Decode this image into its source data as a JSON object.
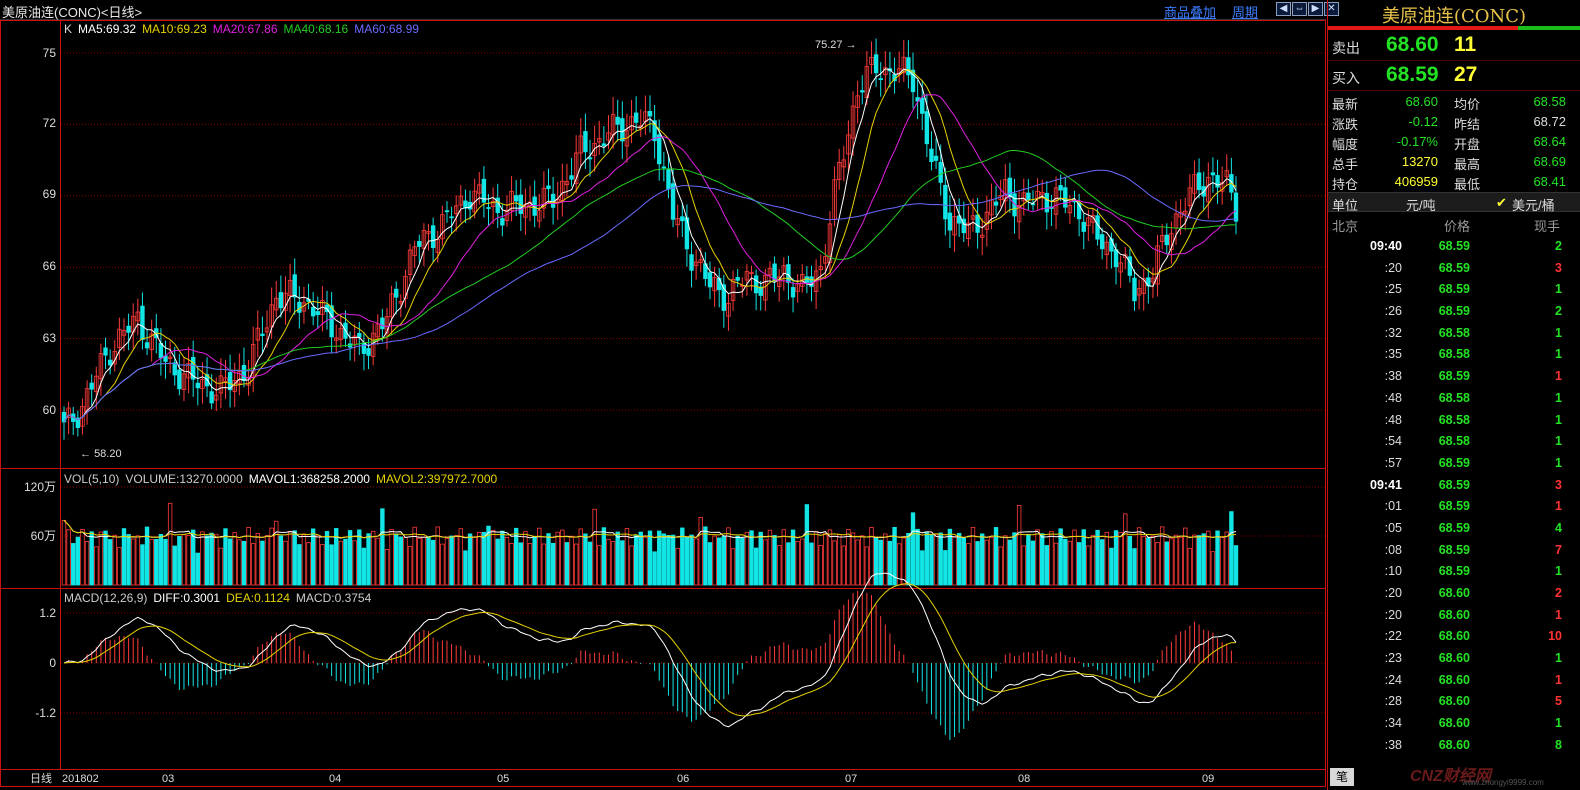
{
  "header": {
    "title": "美原油连(CONC)<日线>",
    "overlay_link": "商品叠加",
    "period_link": "周期",
    "nav_buttons": [
      "◀",
      "⇔",
      "▶",
      "✕"
    ]
  },
  "main_chart": {
    "ma_legend": [
      {
        "text": "K",
        "color": "#dddddd"
      },
      {
        "text": "MA5:69.32",
        "color": "#ffffff"
      },
      {
        "text": "MA10:69.23",
        "color": "#e6d200"
      },
      {
        "text": "MA20:67.86",
        "color": "#e020e0"
      },
      {
        "text": "MA40:68.16",
        "color": "#22cc22"
      },
      {
        "text": "MA60:68.99",
        "color": "#6a6aff"
      }
    ],
    "y_ticks": [
      "75",
      "72",
      "69",
      "66",
      "63",
      "60"
    ],
    "high_marker": "75.27",
    "low_marker": "58.20"
  },
  "volume_panel": {
    "legend": [
      {
        "text": "VOL(5,10)",
        "color": "#cccccc"
      },
      {
        "text": "VOLUME:13270.0000",
        "color": "#cccccc"
      },
      {
        "text": "MAVOL1:368258.2000",
        "color": "#ffffff"
      },
      {
        "text": "MAVOL2:397972.7000",
        "color": "#e6d200"
      }
    ],
    "y_ticks": [
      "120万",
      "60万"
    ]
  },
  "macd_panel": {
    "legend": [
      {
        "text": "MACD(12,26,9)",
        "color": "#cccccc"
      },
      {
        "text": "DIFF:0.3001",
        "color": "#ffffff"
      },
      {
        "text": "DEA:0.1124",
        "color": "#e6d200"
      },
      {
        "text": "MACD:0.3754",
        "color": "#cccccc"
      }
    ],
    "y_ticks": [
      "1.2",
      "0",
      "-1.2"
    ]
  },
  "x_axis": {
    "label": "日线",
    "ticks": [
      "201802",
      "03",
      "04",
      "05",
      "06",
      "07",
      "08",
      "09"
    ]
  },
  "quote": {
    "title": "美原油连(CONC)",
    "ask": {
      "label": "卖出",
      "price": "68.60",
      "qty": "11"
    },
    "bid": {
      "label": "买入",
      "price": "68.59",
      "qty": "27"
    },
    "stats": [
      {
        "k1": "最新",
        "v1": "68.60",
        "c1": "#23e223",
        "k2": "均价",
        "v2": "68.58",
        "c2": "#23e223"
      },
      {
        "k1": "涨跌",
        "v1": "-0.12",
        "c1": "#23e223",
        "k2": "昨结",
        "v2": "68.72",
        "c2": "#dddddd"
      },
      {
        "k1": "幅度",
        "v1": "-0.17%",
        "c1": "#23e223",
        "k2": "开盘",
        "v2": "68.64",
        "c2": "#23e223"
      },
      {
        "k1": "总手",
        "v1": "13270",
        "c1": "#ffff33",
        "k2": "最高",
        "v2": "68.69",
        "c2": "#23e223"
      },
      {
        "k1": "持仓",
        "v1": "406959",
        "c1": "#ffff33",
        "k2": "最低",
        "v2": "68.41",
        "c2": "#23e223"
      }
    ],
    "unit": {
      "label": "单位",
      "cny": "元/吨",
      "usd": "美元/桶"
    },
    "tick_header": {
      "time": "北京",
      "price": "价格",
      "qty": "现手"
    },
    "ticks": [
      {
        "t": "09:40",
        "p": "68.59",
        "q": "2",
        "qc": "#23e223",
        "bold": true
      },
      {
        "t": ":20",
        "p": "68.59",
        "q": "3",
        "qc": "#ff3333"
      },
      {
        "t": ":25",
        "p": "68.59",
        "q": "1",
        "qc": "#23e223"
      },
      {
        "t": ":26",
        "p": "68.59",
        "q": "2",
        "qc": "#23e223"
      },
      {
        "t": ":32",
        "p": "68.58",
        "q": "1",
        "qc": "#23e223"
      },
      {
        "t": ":35",
        "p": "68.58",
        "q": "1",
        "qc": "#23e223"
      },
      {
        "t": ":38",
        "p": "68.59",
        "q": "1",
        "qc": "#ff3333"
      },
      {
        "t": ":48",
        "p": "68.58",
        "q": "1",
        "qc": "#23e223"
      },
      {
        "t": ":48",
        "p": "68.58",
        "q": "1",
        "qc": "#23e223"
      },
      {
        "t": ":54",
        "p": "68.58",
        "q": "1",
        "qc": "#23e223"
      },
      {
        "t": ":57",
        "p": "68.59",
        "q": "1",
        "qc": "#23e223"
      },
      {
        "t": "09:41",
        "p": "68.59",
        "q": "3",
        "qc": "#ff3333",
        "bold": true
      },
      {
        "t": ":01",
        "p": "68.59",
        "q": "1",
        "qc": "#ff3333"
      },
      {
        "t": ":05",
        "p": "68.59",
        "q": "4",
        "qc": "#23e223"
      },
      {
        "t": ":08",
        "p": "68.59",
        "q": "7",
        "qc": "#ff3333"
      },
      {
        "t": ":10",
        "p": "68.59",
        "q": "1",
        "qc": "#23e223"
      },
      {
        "t": ":20",
        "p": "68.60",
        "q": "2",
        "qc": "#ff3333"
      },
      {
        "t": ":20",
        "p": "68.60",
        "q": "1",
        "qc": "#ff3333"
      },
      {
        "t": ":22",
        "p": "68.60",
        "q": "10",
        "qc": "#ff3333"
      },
      {
        "t": ":23",
        "p": "68.60",
        "q": "1",
        "qc": "#23e223"
      },
      {
        "t": ":24",
        "p": "68.60",
        "q": "1",
        "qc": "#ff3333"
      },
      {
        "t": ":28",
        "p": "68.60",
        "q": "5",
        "qc": "#ff3333"
      },
      {
        "t": ":34",
        "p": "68.60",
        "q": "1",
        "qc": "#23e223"
      },
      {
        "t": ":38",
        "p": "68.60",
        "q": "8",
        "qc": "#23e223"
      }
    ],
    "bottom_tab": "笔",
    "watermark": "CNZ财经网",
    "watermark_sub": "www.zhongyi9999.com"
  },
  "colors": {
    "up": "#ff3b3b",
    "down": "#12e5e5",
    "grid": "#8a0000",
    "frame": "#cc1111"
  },
  "chart_data": {
    "type": "candlestick",
    "x": [
      "201802",
      "03",
      "04",
      "05",
      "06",
      "07",
      "08",
      "09"
    ],
    "ylim": [
      58,
      76
    ],
    "max": 75.27,
    "min": 58.2,
    "ma": {
      "MA5": 69.32,
      "MA10": 69.23,
      "MA20": 67.86,
      "MA40": 68.16,
      "MA60": 68.99
    },
    "volume": {
      "VOLUME": 13270.0,
      "MAVOL1": 368258.2,
      "MAVOL2": 397972.7
    },
    "macd": {
      "DIFF": 0.3001,
      "DEA": 0.1124,
      "MACD": 0.3754
    }
  }
}
